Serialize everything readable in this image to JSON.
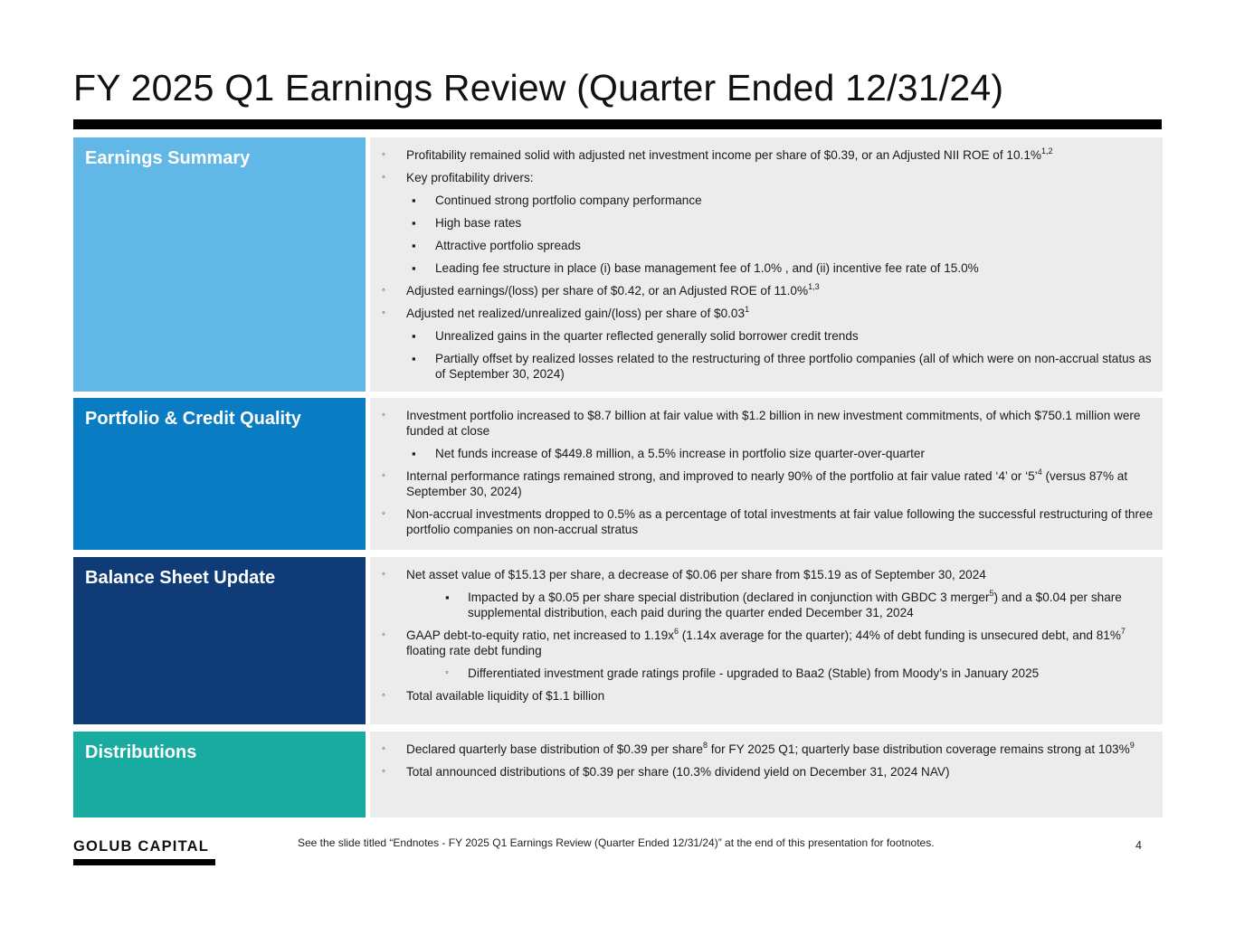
{
  "title": "FY 2025 Q1 Earnings Review (Quarter Ended 12/31/24)",
  "colors": {
    "earnings_summary": "#61b7e6",
    "portfolio_credit": "#0a7cc3",
    "balance_sheet": "#0f3b77",
    "distributions": "#1aaba0",
    "content_bg": "#ececec"
  },
  "sections": {
    "earnings": {
      "label": "Earnings Summary",
      "items": [
        {
          "t": "Profitability remained solid with adjusted net investment income per share of $0.39, or an Adjusted NII ROE of 10.1%",
          "sup": "1,2"
        },
        {
          "t": "Key profitability drivers:"
        },
        {
          "t": "Continued strong portfolio company performance"
        },
        {
          "t": "High base rates"
        },
        {
          "t": "Attractive portfolio spreads"
        },
        {
          "t": "Leading fee structure in place (i) base management fee of 1.0% , and (ii) incentive fee rate of 15.0%"
        },
        {
          "t": "Adjusted earnings/(loss) per share of $0.42, or an Adjusted ROE of 11.0%",
          "sup": "1,3"
        },
        {
          "t": "Adjusted net realized/unrealized gain/(loss) per share of $0.03",
          "sup": "1"
        },
        {
          "t": "Unrealized gains in the quarter reflected generally solid borrower credit trends"
        },
        {
          "t": "Partially offset by realized losses related to the restructuring of three portfolio companies (all of which were on non-accrual status as of September 30, 2024)"
        }
      ]
    },
    "portfolio": {
      "label": "Portfolio & Credit Quality",
      "items": [
        {
          "t": "Investment portfolio increased to $8.7 billion at fair value with $1.2 billion in new investment commitments, of which $750.1 million were funded at close"
        },
        {
          "t": "Net funds increase of $449.8 million, a 5.5% increase in portfolio size quarter-over-quarter"
        },
        {
          "t1": "Internal performance ratings remained strong, and improved to nearly 90% of the portfolio at fair value rated ‘4’ or ‘5’",
          "sup": "4",
          "t2": " (versus 87% at September 30, 2024)"
        },
        {
          "t": "Non-accrual investments dropped to 0.5% as a percentage of total investments at fair value following the successful restructuring of three portfolio companies on non-accrual stratus"
        }
      ]
    },
    "balance": {
      "label": "Balance Sheet Update",
      "items": [
        {
          "t": "Net asset value of $15.13 per share, a decrease of $0.06 per share from $15.19 as of September 30, 2024"
        },
        {
          "t1": "Impacted by a $0.05 per share special distribution (declared in conjunction with GBDC 3 merger",
          "sup": "5",
          "t2": ") and a $0.04 per share supplemental distribution, each paid during the quarter ended December 31, 2024"
        },
        {
          "t1": "GAAP debt-to-equity ratio, net increased to 1.19x",
          "sup": "6",
          "t2": " (1.14x average for the quarter); 44% of debt funding is unsecured debt, and 81%",
          "sup2": "7",
          "t3": " floating rate debt funding"
        },
        {
          "t": "Differentiated investment grade ratings profile - upgraded to Baa2 (Stable) from Moody’s in January 2025"
        },
        {
          "t": "Total available liquidity of $1.1 billion"
        }
      ]
    },
    "distributions": {
      "label": "Distributions",
      "items": [
        {
          "t1": "Declared quarterly base distribution of $0.39 per share",
          "sup": "8",
          "t2": " for FY 2025 Q1; quarterly base distribution coverage remains strong at 103%",
          "sup2": "9"
        },
        {
          "t": "Total announced distributions of $0.39 per share (10.3% dividend yield on December 31, 2024 NAV)"
        }
      ]
    }
  },
  "footer": {
    "logo": "GOLUB CAPITAL",
    "note": "See the slide titled “Endnotes - FY 2025 Q1 Earnings Review (Quarter Ended 12/31/24)” at the end of this presentation for footnotes.",
    "page": "4"
  },
  "bullets": {
    "hollow": "◦",
    "square": "▪"
  }
}
